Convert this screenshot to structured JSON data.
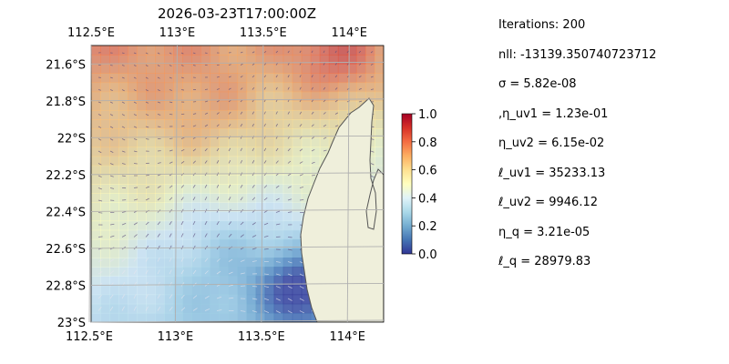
{
  "chart_data": {
    "type": "heatmap",
    "title": "2026-03-23T17:00:00Z",
    "x_ticks": [
      112.5,
      113.0,
      113.5,
      114.0
    ],
    "x_tick_labels": [
      "112.5°E",
      "113°E",
      "113.5°E",
      "114°E"
    ],
    "y_ticks": [
      -21.6,
      -21.8,
      -22.0,
      -22.2,
      -22.4,
      -22.6,
      -22.8,
      -23.0
    ],
    "y_tick_labels": [
      "21.6°S",
      "21.8°S",
      "22°S",
      "22.2°S",
      "22.4°S",
      "22.6°S",
      "22.8°S",
      "23°S"
    ],
    "x_range": [
      112.5,
      114.2
    ],
    "y_range": [
      -23.0,
      -21.5
    ],
    "colorbar": {
      "min": 0.0,
      "max": 1.0,
      "ticks": [
        0.0,
        0.2,
        0.4,
        0.6,
        0.8,
        1.0
      ],
      "tick_labels": [
        "0.0",
        "0.2",
        "0.4",
        "0.6",
        "0.8",
        "1.0"
      ],
      "colormap": "RdYlBu_r"
    },
    "grid": true,
    "land_color": "#efefdb",
    "ocean_color": "#97b6e1"
  },
  "stats": [
    "Iterations: 200",
    "nll: -13139.350740723712",
    "σ = 5.82e-08",
    ",η_uv1 = 1.23e-01",
    "η_uv2 = 6.15e-02",
    "ℓ_uv1 = 35233.13",
    "ℓ_uv2 = 9946.12",
    "η_q = 3.21e-05",
    "ℓ_q = 28979.83"
  ]
}
